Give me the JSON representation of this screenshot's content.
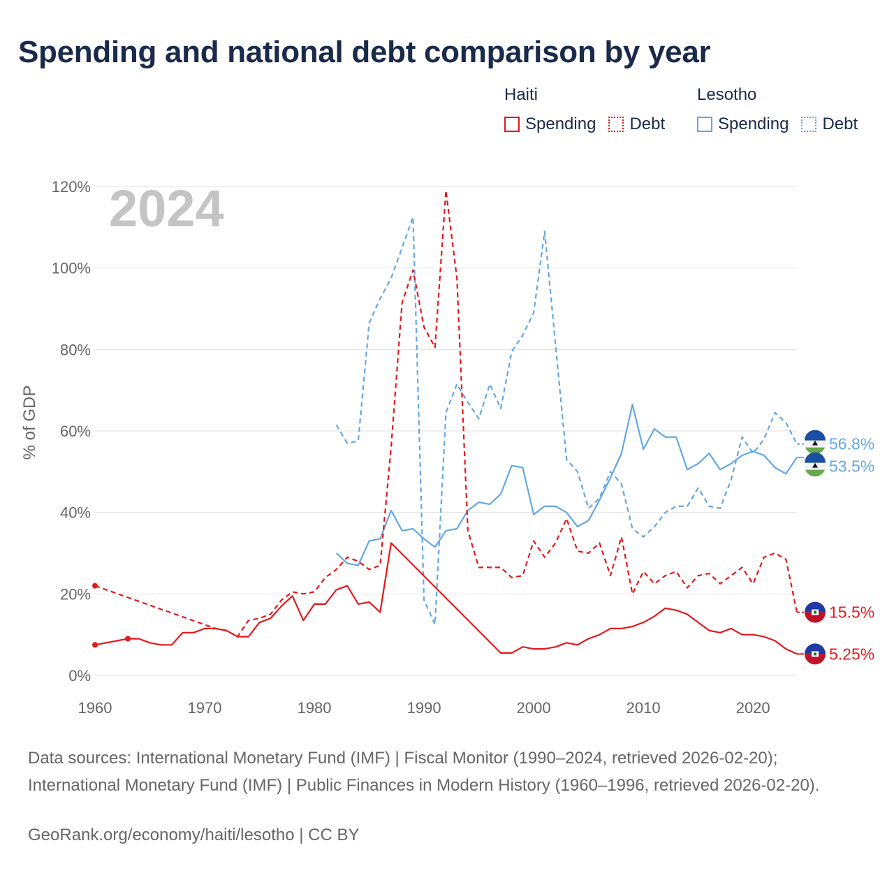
{
  "title": "Spending and national debt comparison by year",
  "legend": {
    "groups": [
      {
        "country": "Haiti",
        "items": [
          {
            "label": "Spending",
            "style": "solid",
            "color": "#e4181c"
          },
          {
            "label": "Debt",
            "style": "dotted",
            "color": "#e4181c"
          }
        ]
      },
      {
        "country": "Lesotho",
        "items": [
          {
            "label": "Spending",
            "style": "solid",
            "color": "#62a8e5"
          },
          {
            "label": "Debt",
            "style": "dotted",
            "color": "#62a8e5"
          }
        ]
      }
    ]
  },
  "footer": {
    "sources": "Data sources: International Monetary Fund (IMF) | Fiscal Monitor (1990–2024, retrieved 2026-02-20); International Monetary Fund (IMF) | Public Finances in Modern History (1960–1996, retrieved 2026-02-20).",
    "credit": "GeoRank.org/economy/haiti/lesotho | CC BY"
  },
  "chart_data": {
    "type": "line",
    "year_label": "2024",
    "ylabel": "% of GDP",
    "xlim": [
      1960,
      2024
    ],
    "ylim": [
      0,
      120
    ],
    "x_ticks": [
      1960,
      1970,
      1980,
      1990,
      2000,
      2010,
      2020
    ],
    "y_ticks": [
      0,
      20,
      40,
      60,
      80,
      100,
      120
    ],
    "y_tick_labels": [
      "0%",
      "20%",
      "40%",
      "60%",
      "80%",
      "100%",
      "120%"
    ],
    "series": [
      {
        "name": "Lesotho Debt",
        "country": "Lesotho",
        "color": "#62a8e5",
        "dash": true,
        "end_label": "56.8%",
        "points": [
          [
            1982,
            61.5
          ],
          [
            1983,
            57
          ],
          [
            1984,
            57.5
          ],
          [
            1985,
            86.5
          ],
          [
            1986,
            92.5
          ],
          [
            1987,
            97.5
          ],
          [
            1988,
            105
          ],
          [
            1989,
            112.5
          ],
          [
            1990,
            18.5
          ],
          [
            1991,
            12.5
          ],
          [
            1992,
            64.5
          ],
          [
            1993,
            71.5
          ],
          [
            1994,
            67
          ],
          [
            1995,
            63
          ],
          [
            1996,
            71.5
          ],
          [
            1997,
            65.5
          ],
          [
            1998,
            79.5
          ],
          [
            1999,
            83.5
          ],
          [
            2000,
            89
          ],
          [
            2001,
            109
          ],
          [
            2002,
            81
          ],
          [
            2003,
            53
          ],
          [
            2004,
            50
          ],
          [
            2005,
            41
          ],
          [
            2006,
            43.5
          ],
          [
            2007,
            50
          ],
          [
            2008,
            47
          ],
          [
            2009,
            36
          ],
          [
            2010,
            34
          ],
          [
            2011,
            36.5
          ],
          [
            2012,
            40
          ],
          [
            2013,
            41.5
          ],
          [
            2014,
            41.5
          ],
          [
            2015,
            46
          ],
          [
            2016,
            41.5
          ],
          [
            2017,
            41
          ],
          [
            2018,
            48
          ],
          [
            2019,
            58.5
          ],
          [
            2020,
            54.5
          ],
          [
            2021,
            58
          ],
          [
            2022,
            64.5
          ],
          [
            2023,
            62
          ],
          [
            2024,
            56.8
          ]
        ]
      },
      {
        "name": "Lesotho Spending",
        "country": "Lesotho",
        "color": "#62a8e5",
        "dash": false,
        "end_label": "53.5%",
        "points": [
          [
            1982,
            30
          ],
          [
            1983,
            27.5
          ],
          [
            1984,
            27
          ],
          [
            1985,
            33
          ],
          [
            1986,
            33.5
          ],
          [
            1987,
            40.5
          ],
          [
            1988,
            35.5
          ],
          [
            1989,
            36
          ],
          [
            1990,
            33.5
          ],
          [
            1991,
            31.5
          ],
          [
            1992,
            35.5
          ],
          [
            1993,
            36
          ],
          [
            1994,
            40.5
          ],
          [
            1995,
            42.5
          ],
          [
            1996,
            42
          ],
          [
            1997,
            44.5
          ],
          [
            1998,
            51.5
          ],
          [
            1999,
            51
          ],
          [
            2000,
            39.5
          ],
          [
            2001,
            41.5
          ],
          [
            2002,
            41.5
          ],
          [
            2003,
            40
          ],
          [
            2004,
            36.5
          ],
          [
            2005,
            38
          ],
          [
            2006,
            43
          ],
          [
            2007,
            48.5
          ],
          [
            2008,
            54.5
          ],
          [
            2009,
            66.5
          ],
          [
            2010,
            55.5
          ],
          [
            2011,
            60.5
          ],
          [
            2012,
            58.5
          ],
          [
            2013,
            58.5
          ],
          [
            2014,
            50.5
          ],
          [
            2015,
            52
          ],
          [
            2016,
            54.5
          ],
          [
            2017,
            50.5
          ],
          [
            2018,
            52
          ],
          [
            2019,
            54
          ],
          [
            2020,
            55
          ],
          [
            2021,
            54
          ],
          [
            2022,
            51
          ],
          [
            2023,
            49.5
          ],
          [
            2024,
            53.5
          ]
        ]
      },
      {
        "name": "Haiti Debt",
        "country": "Haiti",
        "color": "#e4181c",
        "dash": true,
        "end_label": "15.5%",
        "points": [
          [
            1960,
            22
          ],
          [
            1971,
            11.5
          ],
          [
            1972,
            11
          ],
          [
            1973,
            9.5
          ],
          [
            1974,
            13.5
          ],
          [
            1975,
            14
          ],
          [
            1976,
            15
          ],
          [
            1977,
            18.5
          ],
          [
            1978,
            20.5
          ],
          [
            1979,
            20
          ],
          [
            1980,
            20.5
          ],
          [
            1981,
            24
          ],
          [
            1982,
            26
          ],
          [
            1983,
            29
          ],
          [
            1984,
            28
          ],
          [
            1985,
            26
          ],
          [
            1986,
            27
          ],
          [
            1987,
            56
          ],
          [
            1988,
            91.5
          ],
          [
            1989,
            99.5
          ],
          [
            1990,
            85.5
          ],
          [
            1991,
            80.5
          ],
          [
            1992,
            119
          ],
          [
            1993,
            97.5
          ],
          [
            1994,
            35.5
          ],
          [
            1995,
            26.5
          ],
          [
            1996,
            26.5
          ],
          [
            1997,
            26.5
          ],
          [
            1998,
            24
          ],
          [
            1999,
            24.5
          ],
          [
            2000,
            33
          ],
          [
            2001,
            29
          ],
          [
            2002,
            32.5
          ],
          [
            2003,
            38.5
          ],
          [
            2004,
            30.5
          ],
          [
            2005,
            30
          ],
          [
            2006,
            32.5
          ],
          [
            2007,
            24.5
          ],
          [
            2008,
            34
          ],
          [
            2009,
            20
          ],
          [
            2010,
            25.5
          ],
          [
            2011,
            22.5
          ],
          [
            2012,
            24.5
          ],
          [
            2013,
            25.5
          ],
          [
            2014,
            21.5
          ],
          [
            2015,
            24.5
          ],
          [
            2016,
            25
          ],
          [
            2017,
            22.5
          ],
          [
            2018,
            24.5
          ],
          [
            2019,
            26.5
          ],
          [
            2020,
            22.5
          ],
          [
            2021,
            29
          ],
          [
            2022,
            30
          ],
          [
            2023,
            28.5
          ],
          [
            2024,
            15.5
          ]
        ]
      },
      {
        "name": "Haiti Spending",
        "country": "Haiti",
        "color": "#e4181c",
        "dash": false,
        "end_label": "5.25%",
        "points": [
          [
            1960,
            7.5
          ],
          [
            1963,
            9
          ],
          [
            1964,
            9
          ],
          [
            1965,
            8
          ],
          [
            1966,
            7.5
          ],
          [
            1967,
            7.5
          ],
          [
            1968,
            10.5
          ],
          [
            1969,
            10.5
          ],
          [
            1970,
            11.5
          ],
          [
            1971,
            11.5
          ],
          [
            1972,
            11
          ],
          [
            1973,
            9.5
          ],
          [
            1974,
            9.5
          ],
          [
            1975,
            13
          ],
          [
            1976,
            14
          ],
          [
            1977,
            17
          ],
          [
            1978,
            19.5
          ],
          [
            1979,
            13.5
          ],
          [
            1980,
            17.5
          ],
          [
            1981,
            17.5
          ],
          [
            1982,
            21
          ],
          [
            1983,
            22
          ],
          [
            1984,
            17.5
          ],
          [
            1985,
            18
          ],
          [
            1986,
            15.5
          ],
          [
            1987,
            32.5
          ],
          [
            1997,
            5.5
          ],
          [
            1998,
            5.5
          ],
          [
            1999,
            7
          ],
          [
            2000,
            6.5
          ],
          [
            2001,
            6.5
          ],
          [
            2002,
            7
          ],
          [
            2003,
            8
          ],
          [
            2004,
            7.5
          ],
          [
            2005,
            9
          ],
          [
            2006,
            10
          ],
          [
            2007,
            11.5
          ],
          [
            2008,
            11.5
          ],
          [
            2009,
            12
          ],
          [
            2010,
            13
          ],
          [
            2011,
            14.5
          ],
          [
            2012,
            16.5
          ],
          [
            2013,
            16
          ],
          [
            2014,
            15
          ],
          [
            2015,
            13
          ],
          [
            2016,
            11
          ],
          [
            2017,
            10.5
          ],
          [
            2018,
            11.5
          ],
          [
            2019,
            10
          ],
          [
            2020,
            10
          ],
          [
            2021,
            9.5
          ],
          [
            2022,
            8.5
          ],
          [
            2023,
            6.5
          ],
          [
            2024,
            5.25
          ]
        ]
      }
    ],
    "markers": [
      {
        "series": "Haiti Debt",
        "x": 1960,
        "y": 22
      },
      {
        "series": "Haiti Spending",
        "x": 1960,
        "y": 7.5
      },
      {
        "series": "Haiti Spending",
        "x": 1963,
        "y": 9
      }
    ]
  }
}
